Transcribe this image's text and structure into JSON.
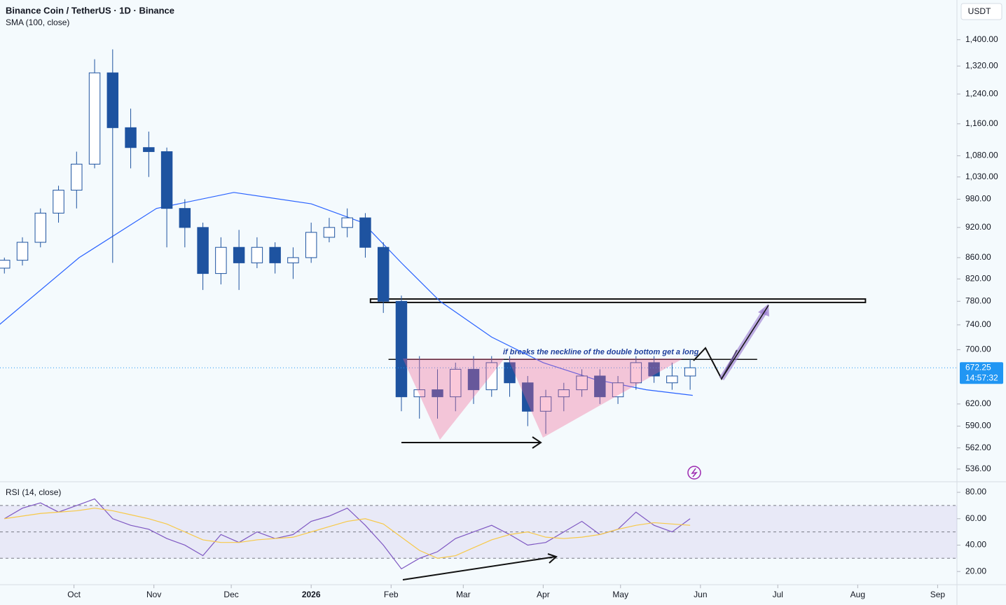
{
  "chart_data": [
    {
      "type": "candlestick",
      "title": "Binance Coin / TetherUS · 1D · Binance",
      "currency": "USDT",
      "x": [
        -119,
        -112,
        -105,
        -98,
        -91,
        -84,
        -77,
        -70,
        -63,
        -56,
        -49,
        -42,
        -35,
        -28,
        -21,
        -14,
        -7,
        0,
        7,
        14,
        21,
        28,
        35,
        42,
        49,
        56,
        63,
        70,
        77,
        84,
        91,
        98,
        105,
        112,
        119,
        126,
        133,
        140,
        147
      ],
      "open": [
        840,
        855,
        890,
        950,
        1000,
        1060,
        1300,
        1150,
        1100,
        1090,
        960,
        920,
        830,
        880,
        850,
        880,
        850,
        860,
        900,
        920,
        940,
        880,
        780,
        630,
        640,
        630,
        670,
        640,
        680,
        650,
        610,
        630,
        640,
        660,
        630,
        650,
        680,
        650,
        660
      ],
      "high": [
        860,
        900,
        960,
        1010,
        1090,
        1340,
        1370,
        1200,
        1140,
        1100,
        980,
        930,
        900,
        915,
        900,
        890,
        880,
        930,
        940,
        960,
        950,
        890,
        790,
        690,
        670,
        680,
        690,
        690,
        690,
        660,
        640,
        650,
        670,
        670,
        660,
        690,
        690,
        680,
        685
      ],
      "low": [
        830,
        845,
        880,
        930,
        960,
        1050,
        850,
        1050,
        1030,
        880,
        880,
        800,
        810,
        800,
        840,
        830,
        820,
        850,
        890,
        900,
        860,
        760,
        610,
        600,
        600,
        610,
        620,
        630,
        630,
        590,
        580,
        610,
        630,
        620,
        620,
        640,
        650,
        640,
        640
      ],
      "close": [
        855,
        890,
        950,
        1000,
        1060,
        1300,
        1150,
        1100,
        1090,
        960,
        920,
        830,
        880,
        850,
        880,
        850,
        860,
        910,
        920,
        940,
        880,
        780,
        630,
        640,
        630,
        670,
        640,
        680,
        650,
        610,
        630,
        640,
        660,
        630,
        650,
        680,
        660,
        660,
        672.25
      ],
      "up_color": "#ffffff",
      "down_color": "#1e53a0",
      "log_scale": true,
      "ylim": [
        521,
        1530
      ],
      "yticks": [
        {
          "value": 1400,
          "label": "1,400.00"
        },
        {
          "value": 1320,
          "label": "1,320.00"
        },
        {
          "value": 1240,
          "label": "1,240.00"
        },
        {
          "value": 1160,
          "label": "1,160.00"
        },
        {
          "value": 1080,
          "label": "1,080.00"
        },
        {
          "value": 1030,
          "label": "1,030.00"
        },
        {
          "value": 980,
          "label": "980.00"
        },
        {
          "value": 920,
          "label": "920.00"
        },
        {
          "value": 860,
          "label": "860.00"
        },
        {
          "value": 820,
          "label": "820.00"
        },
        {
          "value": 780,
          "label": "780.00"
        },
        {
          "value": 740,
          "label": "740.00"
        },
        {
          "value": 700,
          "label": "700.00"
        },
        {
          "value": 620,
          "label": "620.00"
        },
        {
          "value": 590,
          "label": "590.00"
        },
        {
          "value": 562,
          "label": "562.00"
        },
        {
          "value": 536,
          "label": "536.00"
        }
      ],
      "xlim": [
        -120.7,
        250.5
      ],
      "xticks": [
        {
          "value": -92,
          "label": "Oct"
        },
        {
          "value": -61,
          "label": "Nov"
        },
        {
          "value": -31,
          "label": "Dec"
        },
        {
          "value": 0,
          "label": "2026"
        },
        {
          "value": 31,
          "label": "Feb"
        },
        {
          "value": 59,
          "label": "Mar"
        },
        {
          "value": 90,
          "label": "Apr"
        },
        {
          "value": 120,
          "label": "May"
        },
        {
          "value": 151,
          "label": "Jun"
        },
        {
          "value": 181,
          "label": "Jul"
        },
        {
          "value": 212,
          "label": "Aug"
        },
        {
          "value": 243,
          "label": "Sep"
        }
      ],
      "sma": {
        "name": "SMA (100, close)",
        "color": "#2962ff",
        "x": [
          -121,
          -90,
          -60,
          -30,
          0,
          20,
          35,
          50,
          70,
          90,
          110,
          130,
          148
        ],
        "values": [
          740,
          860,
          960,
          995,
          970,
          930,
          850,
          780,
          720,
          680,
          655,
          640,
          632
        ]
      },
      "last_price": 672.25,
      "countdown": "14:57:32",
      "last_color": "#2196f3",
      "resistance": {
        "low": 778,
        "high": 784,
        "x": [
          23,
          215
        ]
      },
      "neckline": {
        "value": 685,
        "x": [
          30,
          173
        ],
        "text": "if breaks the neckline of the double bottom get a long"
      }
    },
    {
      "type": "line",
      "title": "RSI (14, close)",
      "x": [
        -119,
        -112,
        -105,
        -98,
        -91,
        -84,
        -77,
        -70,
        -63,
        -56,
        -49,
        -42,
        -35,
        -28,
        -21,
        -14,
        -7,
        0,
        7,
        14,
        21,
        28,
        35,
        42,
        49,
        56,
        63,
        70,
        77,
        84,
        91,
        98,
        105,
        112,
        119,
        126,
        133,
        140,
        147
      ],
      "series": [
        {
          "color": "#7e57c2",
          "values": [
            60,
            68,
            72,
            65,
            70,
            75,
            60,
            55,
            52,
            45,
            40,
            32,
            48,
            42,
            50,
            45,
            48,
            58,
            62,
            68,
            55,
            40,
            22,
            30,
            35,
            45,
            50,
            55,
            48,
            40,
            42,
            50,
            58,
            48,
            52,
            65,
            55,
            50,
            60
          ]
        },
        {
          "color": "#f7c948",
          "values": [
            60,
            62,
            64,
            65,
            66,
            68,
            66,
            63,
            60,
            56,
            50,
            44,
            42,
            42,
            44,
            45,
            46,
            50,
            54,
            58,
            60,
            56,
            46,
            36,
            30,
            32,
            38,
            44,
            48,
            50,
            46,
            45,
            46,
            48,
            52,
            55,
            57,
            56,
            55
          ]
        }
      ],
      "ylim": [
        10,
        88
      ],
      "yticks": [
        {
          "value": 20,
          "label": "20.00"
        },
        {
          "value": 40,
          "label": "40.00"
        },
        {
          "value": 60,
          "label": "60.00"
        },
        {
          "value": 80,
          "label": "80.00"
        }
      ],
      "levels": [
        30,
        50,
        70
      ]
    }
  ]
}
